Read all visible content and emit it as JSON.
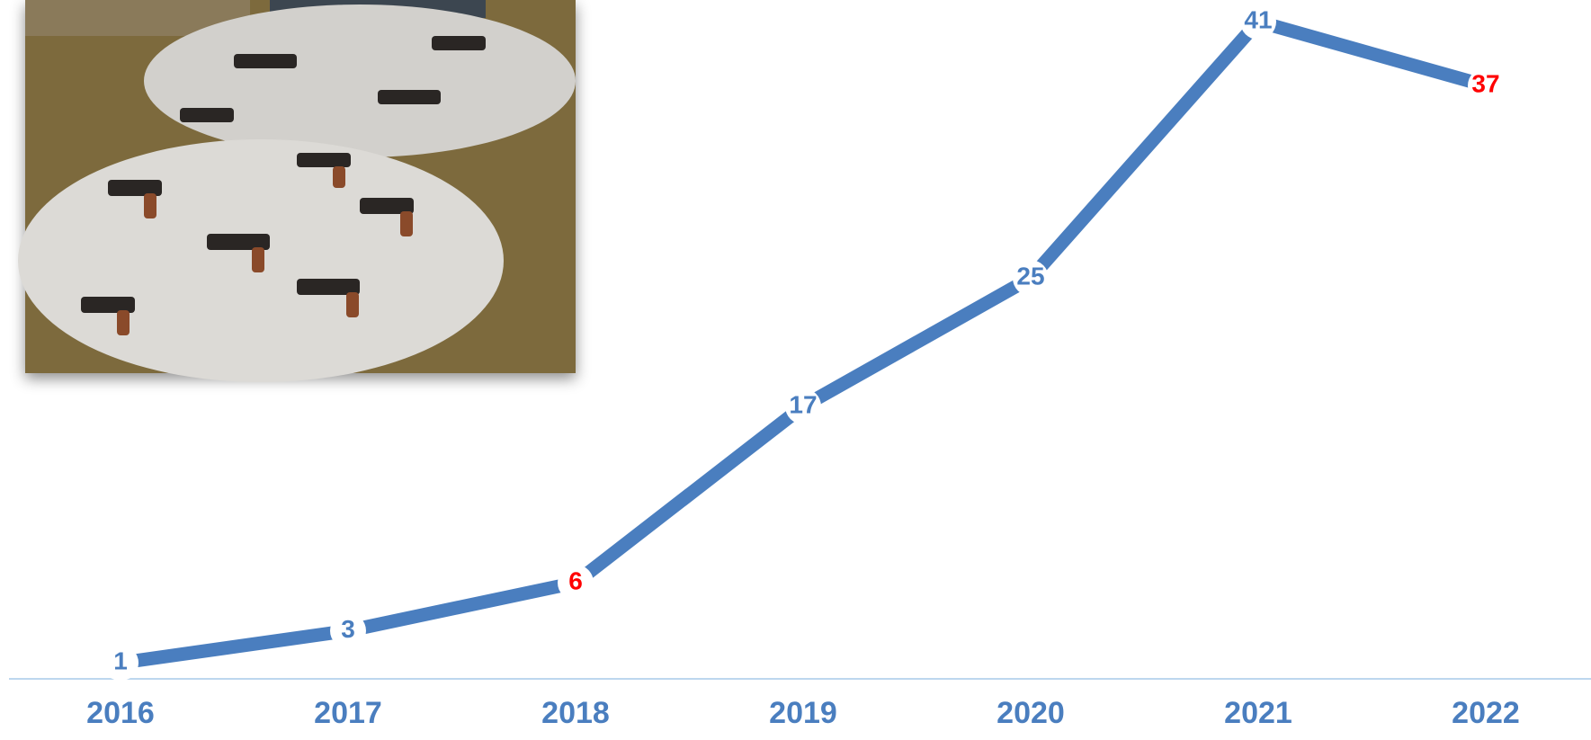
{
  "chart_data": {
    "type": "line",
    "categories": [
      "2016",
      "2017",
      "2018",
      "2019",
      "2020",
      "2021",
      "2022"
    ],
    "values": [
      1,
      3,
      6,
      17,
      25,
      41,
      37
    ],
    "color": "#4a7ebf",
    "label_colors": [
      "#4a7ebf",
      "#4a7ebf",
      "#ff0000",
      "#4a7ebf",
      "#4a7ebf",
      "#4a7ebf",
      "#ff0000"
    ],
    "axis_color": "#bdd7ee"
  }
}
